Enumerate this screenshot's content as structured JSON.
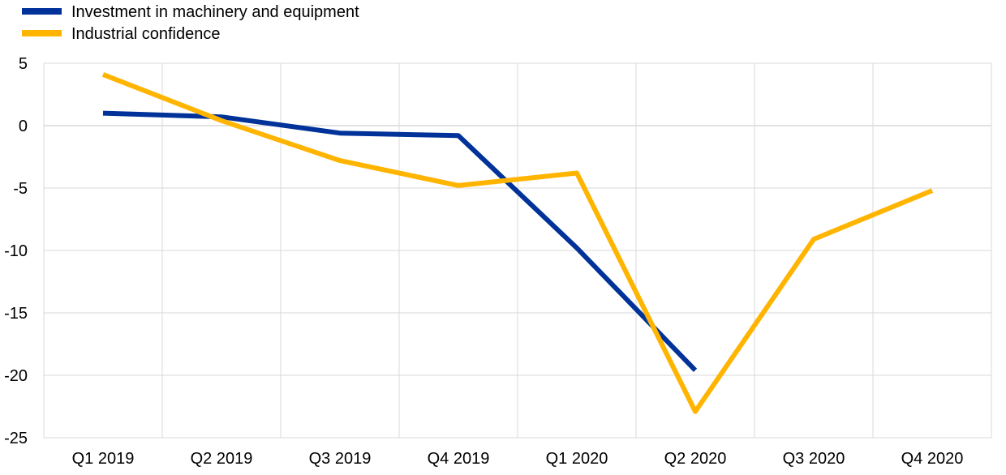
{
  "chart_data": {
    "type": "line",
    "categories": [
      "Q1 2019",
      "Q2 2019",
      "Q3 2019",
      "Q4 2019",
      "Q1 2020",
      "Q2 2020",
      "Q3 2020",
      "Q4 2020"
    ],
    "series": [
      {
        "name": "Investment in machinery and equipment",
        "color": "#003299",
        "values": [
          1.0,
          0.7,
          -0.6,
          -0.8,
          -9.8,
          -19.6,
          null,
          null
        ]
      },
      {
        "name": "Industrial confidence",
        "color": "#FFB400",
        "values": [
          4.1,
          0.4,
          -2.8,
          -4.8,
          -3.8,
          -22.9,
          -9.1,
          -5.2
        ]
      }
    ],
    "y_ticks": [
      "5",
      "0",
      "-5",
      "-10",
      "-15",
      "-20",
      "-25"
    ],
    "ylim": [
      -25,
      5
    ],
    "legend_position": "top-left",
    "grid": true
  }
}
